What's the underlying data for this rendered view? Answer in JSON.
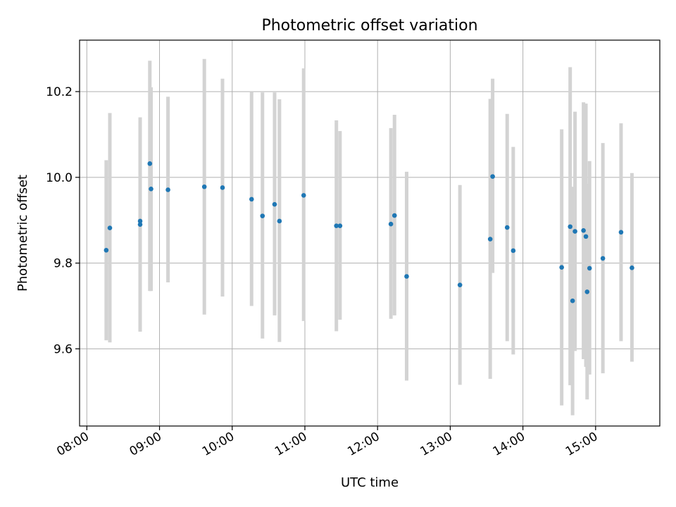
{
  "chart_data": {
    "type": "scatter",
    "title": "Photometric offset variation",
    "xlabel": "UTC time",
    "ylabel": "Photometric offset",
    "x_ticks": [
      "08:00",
      "09:00",
      "10:00",
      "11:00",
      "12:00",
      "13:00",
      "14:00",
      "15:00"
    ],
    "y_ticks": [
      "9.6",
      "9.8",
      "10.0",
      "10.2"
    ],
    "xlim": [
      "07:54",
      "15:53"
    ],
    "ylim": [
      9.42,
      10.32
    ],
    "grid": true,
    "point_color": "#1f77b4",
    "errorbar_color": "#d3d3d3",
    "points": [
      {
        "x": "08:16",
        "y": 9.83,
        "lo": 9.62,
        "hi": 10.04
      },
      {
        "x": "08:19",
        "y": 9.882,
        "lo": 9.615,
        "hi": 10.15
      },
      {
        "x": "08:44",
        "y": 9.89,
        "lo": 9.64,
        "hi": 10.14
      },
      {
        "x": "08:44",
        "y": 9.898,
        "lo": 9.64,
        "hi": 10.13
      },
      {
        "x": "08:52",
        "y": 10.032,
        "lo": 9.735,
        "hi": 10.272
      },
      {
        "x": "08:53",
        "y": 9.973,
        "lo": 9.735,
        "hi": 10.21
      },
      {
        "x": "09:07",
        "y": 9.971,
        "lo": 9.755,
        "hi": 10.188
      },
      {
        "x": "09:37",
        "y": 9.978,
        "lo": 9.68,
        "hi": 10.276
      },
      {
        "x": "09:52",
        "y": 9.976,
        "lo": 9.722,
        "hi": 10.23
      },
      {
        "x": "10:16",
        "y": 9.949,
        "lo": 9.7,
        "hi": 10.2
      },
      {
        "x": "10:25",
        "y": 9.91,
        "lo": 9.624,
        "hi": 10.198
      },
      {
        "x": "10:35",
        "y": 9.937,
        "lo": 9.678,
        "hi": 10.198
      },
      {
        "x": "10:39",
        "y": 9.898,
        "lo": 9.616,
        "hi": 10.182
      },
      {
        "x": "10:59",
        "y": 9.958,
        "lo": 9.665,
        "hi": 10.254
      },
      {
        "x": "11:26",
        "y": 9.887,
        "lo": 9.641,
        "hi": 10.133
      },
      {
        "x": "11:29",
        "y": 9.887,
        "lo": 9.668,
        "hi": 10.108
      },
      {
        "x": "12:11",
        "y": 9.891,
        "lo": 9.67,
        "hi": 10.115
      },
      {
        "x": "12:14",
        "y": 9.911,
        "lo": 9.678,
        "hi": 10.146
      },
      {
        "x": "12:24",
        "y": 9.769,
        "lo": 9.526,
        "hi": 10.013
      },
      {
        "x": "13:08",
        "y": 9.749,
        "lo": 9.516,
        "hi": 9.982
      },
      {
        "x": "13:33",
        "y": 9.856,
        "lo": 9.53,
        "hi": 10.183
      },
      {
        "x": "13:35",
        "y": 10.002,
        "lo": 9.777,
        "hi": 10.23
      },
      {
        "x": "13:47",
        "y": 9.883,
        "lo": 9.618,
        "hi": 10.148
      },
      {
        "x": "13:52",
        "y": 9.829,
        "lo": 9.587,
        "hi": 10.071
      },
      {
        "x": "14:32",
        "y": 9.79,
        "lo": 9.468,
        "hi": 10.112
      },
      {
        "x": "14:39",
        "y": 9.885,
        "lo": 9.515,
        "hi": 10.257
      },
      {
        "x": "14:41",
        "y": 9.712,
        "lo": 9.445,
        "hi": 9.978
      },
      {
        "x": "14:43",
        "y": 9.874,
        "lo": 9.595,
        "hi": 10.153
      },
      {
        "x": "14:50",
        "y": 9.876,
        "lo": 9.576,
        "hi": 10.175
      },
      {
        "x": "14:52",
        "y": 9.862,
        "lo": 9.558,
        "hi": 10.172
      },
      {
        "x": "14:53",
        "y": 9.733,
        "lo": 9.482,
        "hi": 9.985
      },
      {
        "x": "14:55",
        "y": 9.788,
        "lo": 9.54,
        "hi": 10.038
      },
      {
        "x": "15:06",
        "y": 9.811,
        "lo": 9.543,
        "hi": 10.08
      },
      {
        "x": "15:21",
        "y": 9.872,
        "lo": 9.618,
        "hi": 10.126
      },
      {
        "x": "15:30",
        "y": 9.789,
        "lo": 9.57,
        "hi": 10.01
      }
    ]
  }
}
